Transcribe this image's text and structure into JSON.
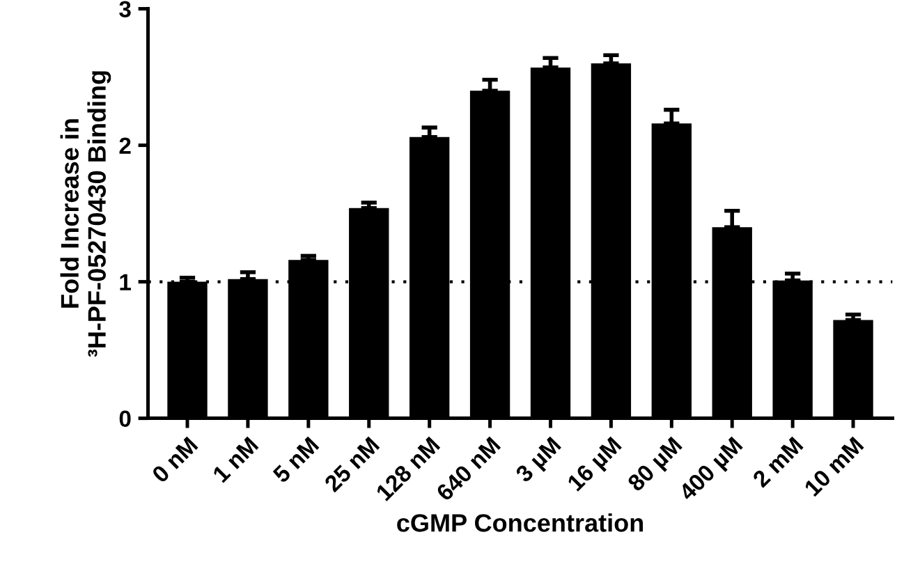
{
  "chart_data": {
    "type": "bar",
    "xlabel": "cGMP Concentration",
    "ylabel": "Fold Increase in\n³H-PF-05270430 Binding",
    "categories": [
      "0 nM",
      "1 nM",
      "5 nM",
      "25 nM",
      "128 nM",
      "640 nM",
      "3 µM",
      "16 µM",
      "80 µM",
      "400 µM",
      "2 mM",
      "10 mM"
    ],
    "values": [
      1.0,
      1.02,
      1.16,
      1.54,
      2.06,
      2.4,
      2.57,
      2.6,
      2.16,
      1.4,
      1.01,
      0.72
    ],
    "errors": [
      [
        1.0,
        1.03
      ],
      [
        1.02,
        1.07
      ],
      [
        1.16,
        1.19
      ],
      [
        1.54,
        1.58
      ],
      [
        2.06,
        2.13
      ],
      [
        2.4,
        2.48
      ],
      [
        2.57,
        2.64
      ],
      [
        2.6,
        2.66
      ],
      [
        2.16,
        2.26
      ],
      [
        1.4,
        1.52
      ],
      [
        1.01,
        1.06
      ],
      [
        0.72,
        0.76
      ]
    ],
    "color": "#000000",
    "ylim": [
      0,
      3
    ],
    "yticks": [
      0,
      1,
      2,
      3
    ],
    "grid": false,
    "ref_lines": [
      {
        "axis": "y",
        "value": 1,
        "line_style": "dotted",
        "color": "#000000"
      }
    ]
  }
}
